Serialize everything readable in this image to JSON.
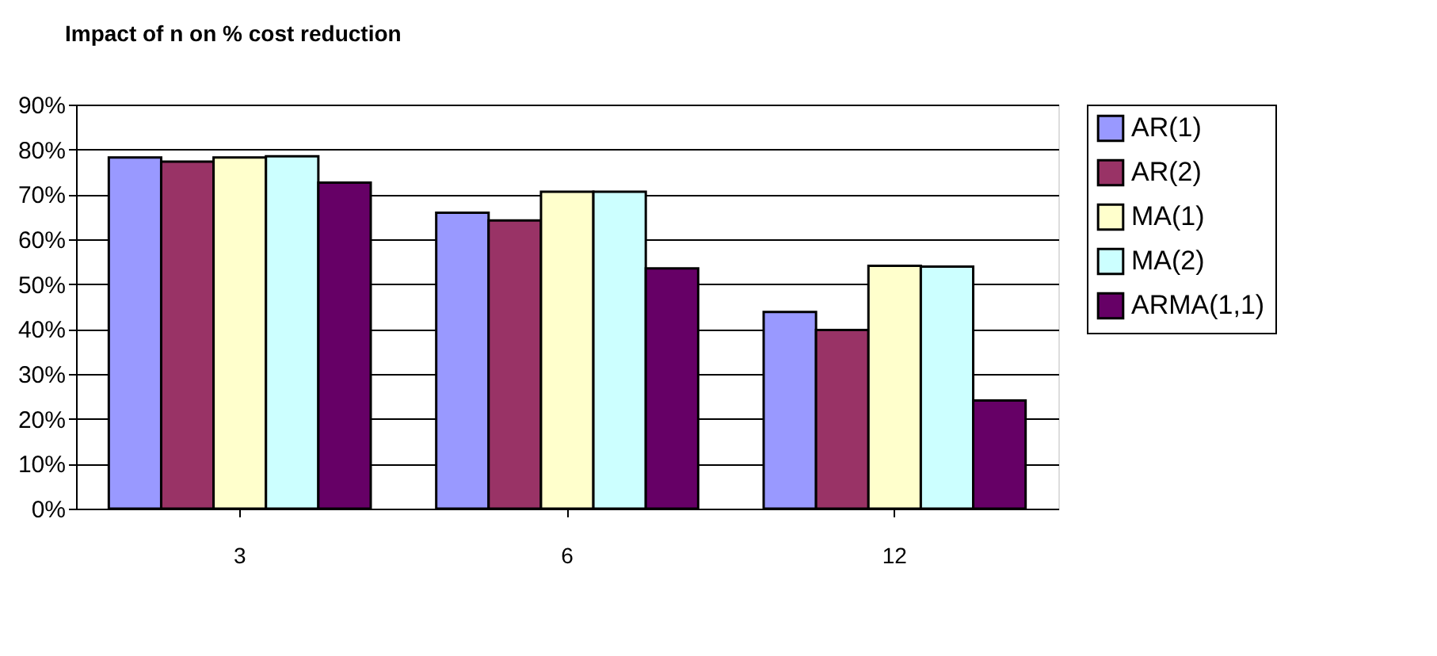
{
  "chart_data": {
    "type": "bar",
    "title": "Impact of n on % cost reduction",
    "categories": [
      "3",
      "6",
      "12"
    ],
    "series": [
      {
        "name": "AR(1)",
        "color": "#9999ff",
        "values": [
          78.2,
          65.9,
          43.8
        ]
      },
      {
        "name": "AR(2)",
        "color": "#993366",
        "values": [
          77.3,
          64.2,
          39.8
        ]
      },
      {
        "name": "MA(1)",
        "color": "#ffffcc",
        "values": [
          78.2,
          70.6,
          54.1
        ]
      },
      {
        "name": "MA(2)",
        "color": "#ccffff",
        "values": [
          78.5,
          70.6,
          53.9
        ]
      },
      {
        "name": "ARMA(1,1)",
        "color": "#660066",
        "values": [
          72.6,
          53.5,
          24.1
        ]
      }
    ],
    "ylim": [
      0,
      90
    ],
    "yticks": [
      {
        "value": 0,
        "label": "0%"
      },
      {
        "value": 10,
        "label": "10%"
      },
      {
        "value": 20,
        "label": "20%"
      },
      {
        "value": 30,
        "label": "30%"
      },
      {
        "value": 40,
        "label": "40%"
      },
      {
        "value": 50,
        "label": "50%"
      },
      {
        "value": 60,
        "label": "60%"
      },
      {
        "value": 70,
        "label": "70%"
      },
      {
        "value": 80,
        "label": "80%"
      },
      {
        "value": 90,
        "label": "90%"
      }
    ],
    "grid": "y",
    "legend": "right"
  }
}
